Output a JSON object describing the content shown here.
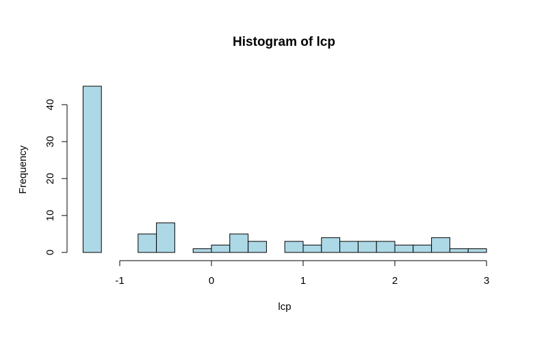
{
  "chart_data": {
    "type": "bar",
    "title": "Histogram of lcp",
    "xlabel": "lcp",
    "ylabel": "Frequency",
    "x_ticks": [
      -1,
      0,
      1,
      2,
      3
    ],
    "y_ticks": [
      0,
      10,
      20,
      30,
      40
    ],
    "ylim": [
      0,
      45
    ],
    "bins": [
      {
        "start": -1.4,
        "end": -1.2,
        "count": 45
      },
      {
        "start": -1.2,
        "end": -1.0,
        "count": 0
      },
      {
        "start": -1.0,
        "end": -0.8,
        "count": 0
      },
      {
        "start": -0.8,
        "end": -0.6,
        "count": 5
      },
      {
        "start": -0.6,
        "end": -0.4,
        "count": 8
      },
      {
        "start": -0.4,
        "end": -0.2,
        "count": 0
      },
      {
        "start": -0.2,
        "end": 0.0,
        "count": 1
      },
      {
        "start": 0.0,
        "end": 0.2,
        "count": 2
      },
      {
        "start": 0.2,
        "end": 0.4,
        "count": 5
      },
      {
        "start": 0.4,
        "end": 0.6,
        "count": 3
      },
      {
        "start": 0.6,
        "end": 0.8,
        "count": 0
      },
      {
        "start": 0.8,
        "end": 1.0,
        "count": 3
      },
      {
        "start": 1.0,
        "end": 1.2,
        "count": 2
      },
      {
        "start": 1.2,
        "end": 1.4,
        "count": 4
      },
      {
        "start": 1.4,
        "end": 1.6,
        "count": 3
      },
      {
        "start": 1.6,
        "end": 1.8,
        "count": 3
      },
      {
        "start": 1.8,
        "end": 2.0,
        "count": 3
      },
      {
        "start": 2.0,
        "end": 2.2,
        "count": 2
      },
      {
        "start": 2.2,
        "end": 2.4,
        "count": 2
      },
      {
        "start": 2.4,
        "end": 2.6,
        "count": 4
      },
      {
        "start": 2.6,
        "end": 2.8,
        "count": 1
      },
      {
        "start": 2.8,
        "end": 3.0,
        "count": 1
      }
    ],
    "colors": {
      "bar_fill": "#add8e6",
      "bar_stroke": "#000000",
      "axis": "#000000",
      "text": "#000000",
      "background": "#ffffff"
    }
  }
}
